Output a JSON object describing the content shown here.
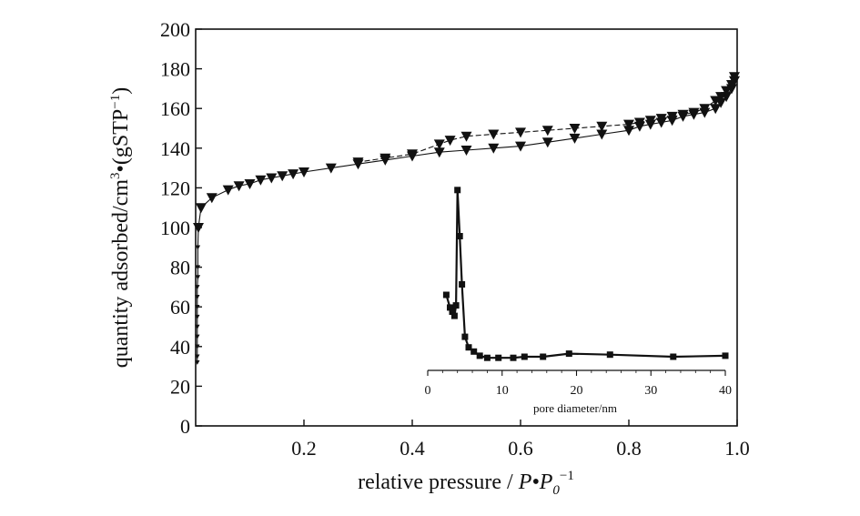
{
  "chart_data": [
    {
      "type": "scatter",
      "role": "main",
      "xlabel_text": "relative pressure / ",
      "xlabel_var": "P•P",
      "xlabel_sub": "0",
      "xlabel_sup": "−1",
      "ylabel_text": "quantity adsorbed/cm",
      "ylabel_sup1": "3",
      "ylabel_mid": "•(gSTP",
      "ylabel_sup2": "−1",
      "ylabel_end": ")",
      "xlim": [
        0,
        1.0
      ],
      "ylim": [
        0,
        200
      ],
      "xticks": [
        0.2,
        0.4,
        0.6,
        0.8,
        1.0
      ],
      "xtick_labels": [
        "0.2",
        "0.4",
        "0.6",
        "0.8",
        "1.0"
      ],
      "yticks": [
        0,
        20,
        40,
        60,
        80,
        100,
        120,
        140,
        160,
        180,
        200
      ],
      "ytick_labels": [
        "0",
        "20",
        "40",
        "60",
        "80",
        "100",
        "120",
        "140",
        "160",
        "180",
        "200"
      ],
      "marker": "triangle-down",
      "series": [
        {
          "role": "adsorption",
          "x": [
            0.003,
            0.003,
            0.003,
            0.003,
            0.003,
            0.003,
            0.003,
            0.003,
            0.003,
            0.004,
            0.004,
            0.004,
            0.005,
            0.01,
            0.03,
            0.06,
            0.08,
            0.1,
            0.12,
            0.14,
            0.16,
            0.18,
            0.2,
            0.25,
            0.3,
            0.35,
            0.4,
            0.45,
            0.5,
            0.55,
            0.6,
            0.65,
            0.7,
            0.75,
            0.8,
            0.82,
            0.84,
            0.86,
            0.88,
            0.9,
            0.92,
            0.94,
            0.96,
            0.97,
            0.98,
            0.99,
            0.995
          ],
          "y": [
            32,
            35,
            40,
            45,
            50,
            55,
            60,
            65,
            70,
            75,
            80,
            90,
            100,
            110,
            115,
            119,
            121,
            122,
            124,
            125,
            126,
            127,
            128,
            130,
            132,
            134,
            136,
            138,
            139,
            140,
            141,
            143,
            145,
            147,
            149,
            151,
            152,
            153,
            154,
            156,
            157,
            158,
            160,
            163,
            166,
            170,
            174
          ]
        },
        {
          "role": "desorption",
          "x": [
            0.995,
            0.99,
            0.98,
            0.97,
            0.96,
            0.94,
            0.92,
            0.9,
            0.88,
            0.86,
            0.84,
            0.82,
            0.8,
            0.75,
            0.7,
            0.65,
            0.6,
            0.55,
            0.5,
            0.47,
            0.45,
            0.4,
            0.35,
            0.3
          ],
          "y": [
            176,
            172,
            169,
            166,
            164,
            160,
            158,
            157,
            156,
            155,
            154,
            153,
            152,
            151,
            150,
            149,
            148,
            147,
            146,
            144,
            142,
            137,
            135,
            133
          ]
        }
      ]
    },
    {
      "type": "line",
      "role": "inset",
      "xlabel": "pore diameter/nm",
      "xlim": [
        0,
        40
      ],
      "ylim": [
        34,
        126
      ],
      "xticks": [
        0,
        10,
        20,
        30,
        40
      ],
      "xtick_labels": [
        "0",
        "10",
        "20",
        "30",
        "40"
      ],
      "marker": "square",
      "series": [
        {
          "x": [
            2.5,
            3.0,
            3.3,
            3.6,
            3.8,
            4.0,
            4.3,
            4.6,
            5.0,
            5.5,
            6.2,
            7.0,
            8.0,
            9.5,
            11.5,
            13.0,
            15.5,
            19.0,
            24.5,
            33.0,
            40.0
          ],
          "y": [
            70,
            64,
            62,
            60,
            65,
            120,
            98,
            75,
            50,
            45,
            43,
            41,
            40,
            40,
            40,
            40.5,
            40.5,
            42,
            41.5,
            40.5,
            41
          ]
        }
      ]
    }
  ]
}
